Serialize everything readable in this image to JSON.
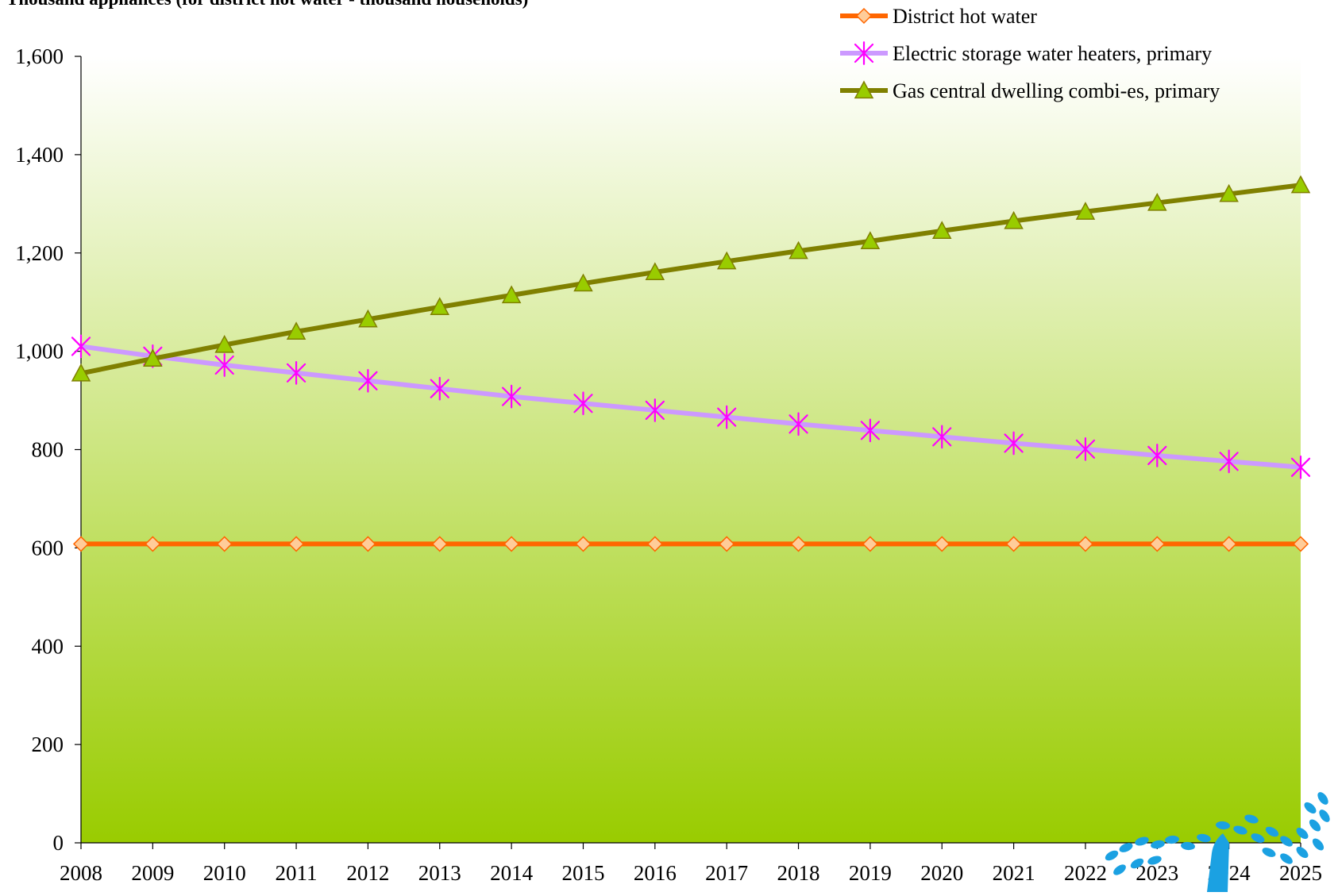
{
  "chart_data": {
    "type": "line",
    "title": "",
    "ylabel": "Thousand appliances (for district hot water - thousand households)",
    "xlabel": "",
    "categories": [
      "2008",
      "2009",
      "2010",
      "2011",
      "2012",
      "2013",
      "2014",
      "2015",
      "2016",
      "2017",
      "2018",
      "2019",
      "2020",
      "2021",
      "2022",
      "2023",
      "2024",
      "2025"
    ],
    "ylim": [
      0,
      1600
    ],
    "yticks": [
      0,
      200,
      400,
      600,
      800,
      1000,
      1200,
      1400,
      1600
    ],
    "ytick_labels": [
      "0",
      "200",
      "400",
      "600",
      "800",
      "1,000",
      "1,200",
      "1,400",
      "1,600"
    ],
    "grid": false,
    "legend_position": "top-right",
    "series": [
      {
        "name": "District hot water",
        "color": "#FF6600",
        "marker": "diamond",
        "marker_fill": "#FFCC99",
        "values": [
          608,
          608,
          608,
          608,
          608,
          608,
          608,
          608,
          608,
          608,
          608,
          608,
          608,
          608,
          608,
          608,
          608,
          608
        ]
      },
      {
        "name": "Electric storage water heaters, primary",
        "color": "#CC99FF",
        "marker": "star",
        "marker_color": "#FF00FF",
        "values": [
          1010,
          990,
          972,
          956,
          940,
          924,
          908,
          894,
          880,
          866,
          852,
          839,
          826,
          813,
          801,
          788,
          776,
          764
        ]
      },
      {
        "name": "Gas central dwelling combi-es, primary",
        "color": "#808000",
        "marker": "triangle",
        "marker_fill": "#99CC00",
        "values": [
          955,
          985,
          1013,
          1040,
          1065,
          1090,
          1114,
          1138,
          1161,
          1183,
          1204,
          1224,
          1245,
          1265,
          1284,
          1302,
          1320,
          1338
        ]
      }
    ],
    "background_gradient": [
      "#FFFFFF",
      "#99CC00"
    ]
  }
}
